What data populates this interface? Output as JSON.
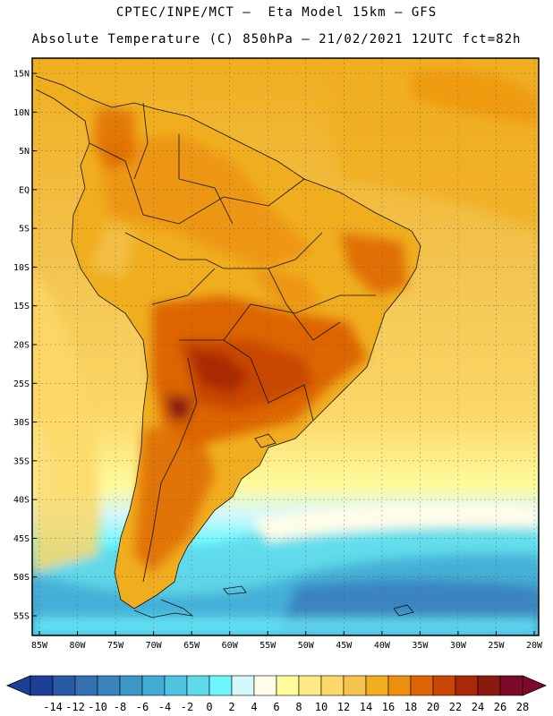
{
  "header": {
    "line1": "CPTEC/INPE/MCT –  Eta Model 15km – GFS",
    "line2": "Absolute Temperature (C) 850hPa – 21/02/2021 12UTC fct=82h"
  },
  "axes": {
    "lat_labels": [
      "15N",
      "10N",
      "5N",
      "EQ",
      "5S",
      "10S",
      "15S",
      "20S",
      "25S",
      "30S",
      "35S",
      "40S",
      "45S",
      "50S",
      "55S"
    ],
    "lon_labels": [
      "85W",
      "80W",
      "75W",
      "70W",
      "65W",
      "60W",
      "55W",
      "50W",
      "45W",
      "40W",
      "35W",
      "30W",
      "25W",
      "20W"
    ],
    "lat_values": [
      15,
      10,
      5,
      0,
      -5,
      -10,
      -15,
      -20,
      -25,
      -30,
      -35,
      -40,
      -45,
      -50,
      -55
    ],
    "lon_values": [
      -85,
      -80,
      -75,
      -70,
      -65,
      -60,
      -55,
      -50,
      -45,
      -40,
      -35,
      -30,
      -25,
      -20
    ]
  },
  "colorbar": {
    "labels": [
      "-14",
      "-12",
      "-10",
      "-8",
      "-6",
      "-4",
      "-2",
      "0",
      "2",
      "4",
      "6",
      "8",
      "10",
      "12",
      "14",
      "16",
      "18",
      "20",
      "22",
      "24",
      "26",
      "28"
    ],
    "colors": [
      "#1b3f94",
      "#2a5aa6",
      "#3471b3",
      "#3b84c0",
      "#3e97c9",
      "#43acd5",
      "#4fc4e1",
      "#5fdaea",
      "#6ff7ff",
      "#d4f7fa",
      "#fffde8",
      "#fffb9c",
      "#fde985",
      "#fbd868",
      "#f3c34e",
      "#f0ae1f",
      "#ec8f0c",
      "#dd6506",
      "#c94606",
      "#a92906",
      "#8a1a10",
      "#7d0a2a"
    ]
  },
  "icons": {
    "colorbar_left_arrow": "arrow-left-icon",
    "colorbar_right_arrow": "arrow-right-icon"
  }
}
